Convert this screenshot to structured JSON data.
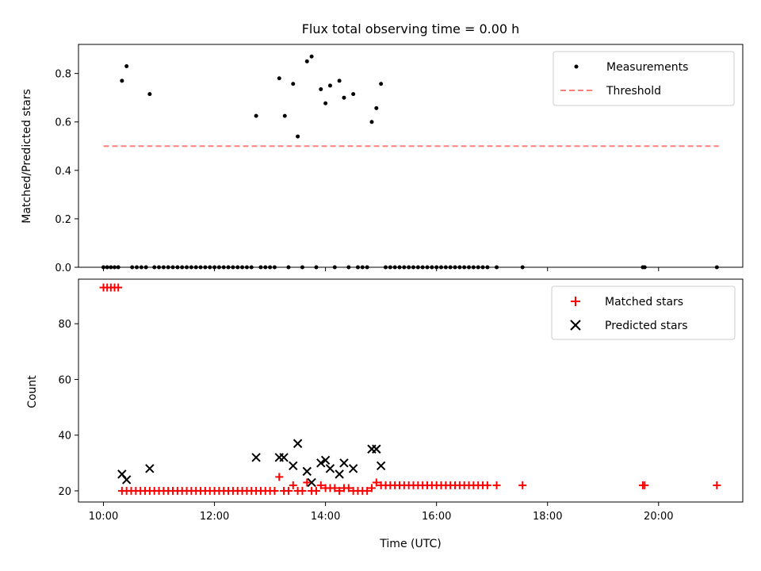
{
  "chart_data": [
    {
      "type": "scatter",
      "title": "Flux total observing time = 0.00 h",
      "xlabel": "",
      "ylabel": "Matched/Predicted stars",
      "xlim": [
        "09:33",
        "21:31"
      ],
      "ylim": [
        0.0,
        0.92
      ],
      "yticks": [
        0.0,
        0.2,
        0.4,
        0.6,
        0.8
      ],
      "yticklabels": [
        "0.0",
        "0.2",
        "0.4",
        "0.6",
        "0.8"
      ],
      "xticks": [
        "10:00",
        "12:00",
        "14:00",
        "16:00",
        "18:00",
        "20:00"
      ],
      "legend_position": "top-right",
      "threshold": {
        "name": "Threshold",
        "value": 0.5,
        "x_range": [
          "10:00",
          "21:05"
        ],
        "color": "#ff7f7f"
      },
      "series": [
        {
          "name": "Measurements",
          "color": "#000000",
          "marker": "dot",
          "points": [
            [
              "10:00",
              0
            ],
            [
              "10:04",
              0
            ],
            [
              "10:08",
              0
            ],
            [
              "10:12",
              0
            ],
            [
              "10:16",
              0
            ],
            [
              "10:20",
              0.77
            ],
            [
              "10:25",
              0.83
            ],
            [
              "10:31",
              0
            ],
            [
              "10:36",
              0
            ],
            [
              "10:41",
              0
            ],
            [
              "10:46",
              0
            ],
            [
              "10:50",
              0.715
            ],
            [
              "10:55",
              0
            ],
            [
              "11:00",
              0
            ],
            [
              "11:05",
              0
            ],
            [
              "11:10",
              0
            ],
            [
              "11:15",
              0
            ],
            [
              "11:20",
              0
            ],
            [
              "11:25",
              0
            ],
            [
              "11:30",
              0
            ],
            [
              "11:35",
              0
            ],
            [
              "11:40",
              0
            ],
            [
              "11:45",
              0
            ],
            [
              "11:50",
              0
            ],
            [
              "11:55",
              0
            ],
            [
              "12:00",
              0
            ],
            [
              "12:05",
              0
            ],
            [
              "12:10",
              0
            ],
            [
              "12:15",
              0
            ],
            [
              "12:20",
              0
            ],
            [
              "12:25",
              0
            ],
            [
              "12:30",
              0
            ],
            [
              "12:35",
              0
            ],
            [
              "12:40",
              0
            ],
            [
              "12:45",
              0.625
            ],
            [
              "12:50",
              0
            ],
            [
              "12:55",
              0
            ],
            [
              "13:00",
              0
            ],
            [
              "13:05",
              0
            ],
            [
              "13:10",
              0.78
            ],
            [
              "13:16",
              0.625
            ],
            [
              "13:20",
              0
            ],
            [
              "13:25",
              0.757
            ],
            [
              "13:30",
              0.54
            ],
            [
              "13:35",
              0
            ],
            [
              "13:40",
              0.85
            ],
            [
              "13:45",
              0.87
            ],
            [
              "13:50",
              0
            ],
            [
              "13:55",
              0.735
            ],
            [
              "14:00",
              0.677
            ],
            [
              "14:05",
              0.75
            ],
            [
              "14:10",
              0
            ],
            [
              "14:15",
              0.77
            ],
            [
              "14:20",
              0.7
            ],
            [
              "14:25",
              0
            ],
            [
              "14:30",
              0.715
            ],
            [
              "14:35",
              0
            ],
            [
              "14:40",
              0
            ],
            [
              "14:45",
              0
            ],
            [
              "14:50",
              0.6
            ],
            [
              "14:55",
              0.657
            ],
            [
              "15:00",
              0.757
            ],
            [
              "15:05",
              0
            ],
            [
              "15:10",
              0
            ],
            [
              "15:15",
              0
            ],
            [
              "15:20",
              0
            ],
            [
              "15:25",
              0
            ],
            [
              "15:30",
              0
            ],
            [
              "15:35",
              0
            ],
            [
              "15:40",
              0
            ],
            [
              "15:45",
              0
            ],
            [
              "15:50",
              0
            ],
            [
              "15:55",
              0
            ],
            [
              "16:00",
              0
            ],
            [
              "16:05",
              0
            ],
            [
              "16:10",
              0
            ],
            [
              "16:15",
              0
            ],
            [
              "16:20",
              0
            ],
            [
              "16:25",
              0
            ],
            [
              "16:30",
              0
            ],
            [
              "16:35",
              0
            ],
            [
              "16:40",
              0
            ],
            [
              "16:45",
              0
            ],
            [
              "16:50",
              0
            ],
            [
              "16:55",
              0
            ],
            [
              "17:05",
              0
            ],
            [
              "17:33",
              0
            ],
            [
              "19:43",
              0
            ],
            [
              "19:45",
              0
            ],
            [
              "21:03",
              0
            ]
          ]
        }
      ]
    },
    {
      "type": "scatter",
      "title": "",
      "xlabel": "Time (UTC)",
      "ylabel": "Count",
      "xlim": [
        "09:33",
        "21:31"
      ],
      "ylim": [
        16,
        96
      ],
      "yticks": [
        20,
        40,
        60,
        80
      ],
      "yticklabels": [
        "20",
        "40",
        "60",
        "80"
      ],
      "xticks": [
        "10:00",
        "12:00",
        "14:00",
        "16:00",
        "18:00",
        "20:00"
      ],
      "xticklabels": [
        "10:00",
        "12:00",
        "14:00",
        "16:00",
        "18:00",
        "20:00"
      ],
      "legend_position": "top-right",
      "series": [
        {
          "name": "Matched stars",
          "color": "#ff0000",
          "marker": "plus",
          "points": [
            [
              "10:00",
              93
            ],
            [
              "10:04",
              93
            ],
            [
              "10:08",
              93
            ],
            [
              "10:12",
              93
            ],
            [
              "10:16",
              93
            ],
            [
              "10:20",
              20
            ],
            [
              "10:25",
              20
            ],
            [
              "10:30",
              20
            ],
            [
              "10:35",
              20
            ],
            [
              "10:40",
              20
            ],
            [
              "10:45",
              20
            ],
            [
              "10:50",
              20
            ],
            [
              "10:55",
              20
            ],
            [
              "11:00",
              20
            ],
            [
              "11:05",
              20
            ],
            [
              "11:10",
              20
            ],
            [
              "11:15",
              20
            ],
            [
              "11:20",
              20
            ],
            [
              "11:25",
              20
            ],
            [
              "11:30",
              20
            ],
            [
              "11:35",
              20
            ],
            [
              "11:40",
              20
            ],
            [
              "11:45",
              20
            ],
            [
              "11:50",
              20
            ],
            [
              "11:55",
              20
            ],
            [
              "12:00",
              20
            ],
            [
              "12:05",
              20
            ],
            [
              "12:10",
              20
            ],
            [
              "12:15",
              20
            ],
            [
              "12:20",
              20
            ],
            [
              "12:25",
              20
            ],
            [
              "12:30",
              20
            ],
            [
              "12:35",
              20
            ],
            [
              "12:40",
              20
            ],
            [
              "12:45",
              20
            ],
            [
              "12:50",
              20
            ],
            [
              "12:55",
              20
            ],
            [
              "13:00",
              20
            ],
            [
              "13:05",
              20
            ],
            [
              "13:10",
              25
            ],
            [
              "13:15",
              20
            ],
            [
              "13:20",
              20
            ],
            [
              "13:25",
              22
            ],
            [
              "13:30",
              20
            ],
            [
              "13:35",
              20
            ],
            [
              "13:40",
              23
            ],
            [
              "13:45",
              20
            ],
            [
              "13:50",
              20
            ],
            [
              "13:55",
              22
            ],
            [
              "14:00",
              21
            ],
            [
              "14:05",
              21
            ],
            [
              "14:10",
              21
            ],
            [
              "14:15",
              20
            ],
            [
              "14:20",
              21
            ],
            [
              "14:25",
              21
            ],
            [
              "14:30",
              20
            ],
            [
              "14:35",
              20
            ],
            [
              "14:40",
              20
            ],
            [
              "14:45",
              20
            ],
            [
              "14:50",
              21
            ],
            [
              "14:55",
              23
            ],
            [
              "15:00",
              22
            ],
            [
              "15:05",
              22
            ],
            [
              "15:10",
              22
            ],
            [
              "15:15",
              22
            ],
            [
              "15:20",
              22
            ],
            [
              "15:25",
              22
            ],
            [
              "15:30",
              22
            ],
            [
              "15:35",
              22
            ],
            [
              "15:40",
              22
            ],
            [
              "15:45",
              22
            ],
            [
              "15:50",
              22
            ],
            [
              "15:55",
              22
            ],
            [
              "16:00",
              22
            ],
            [
              "16:05",
              22
            ],
            [
              "16:10",
              22
            ],
            [
              "16:15",
              22
            ],
            [
              "16:20",
              22
            ],
            [
              "16:25",
              22
            ],
            [
              "16:30",
              22
            ],
            [
              "16:35",
              22
            ],
            [
              "16:40",
              22
            ],
            [
              "16:45",
              22
            ],
            [
              "16:50",
              22
            ],
            [
              "16:55",
              22
            ],
            [
              "17:05",
              22
            ],
            [
              "17:33",
              22
            ],
            [
              "19:43",
              22
            ],
            [
              "19:45",
              22
            ],
            [
              "21:03",
              22
            ]
          ]
        },
        {
          "name": "Predicted stars",
          "color": "#000000",
          "marker": "x",
          "points": [
            [
              "10:20",
              26
            ],
            [
              "10:25",
              24
            ],
            [
              "10:50",
              28
            ],
            [
              "12:45",
              32
            ],
            [
              "13:10",
              32
            ],
            [
              "13:15",
              32
            ],
            [
              "13:25",
              29
            ],
            [
              "13:30",
              37
            ],
            [
              "13:40",
              27
            ],
            [
              "13:45",
              23
            ],
            [
              "13:55",
              30
            ],
            [
              "14:00",
              31
            ],
            [
              "14:05",
              28
            ],
            [
              "14:15",
              26
            ],
            [
              "14:20",
              30
            ],
            [
              "14:30",
              28
            ],
            [
              "14:50",
              35
            ],
            [
              "14:55",
              35
            ],
            [
              "15:00",
              29
            ]
          ]
        }
      ]
    }
  ]
}
